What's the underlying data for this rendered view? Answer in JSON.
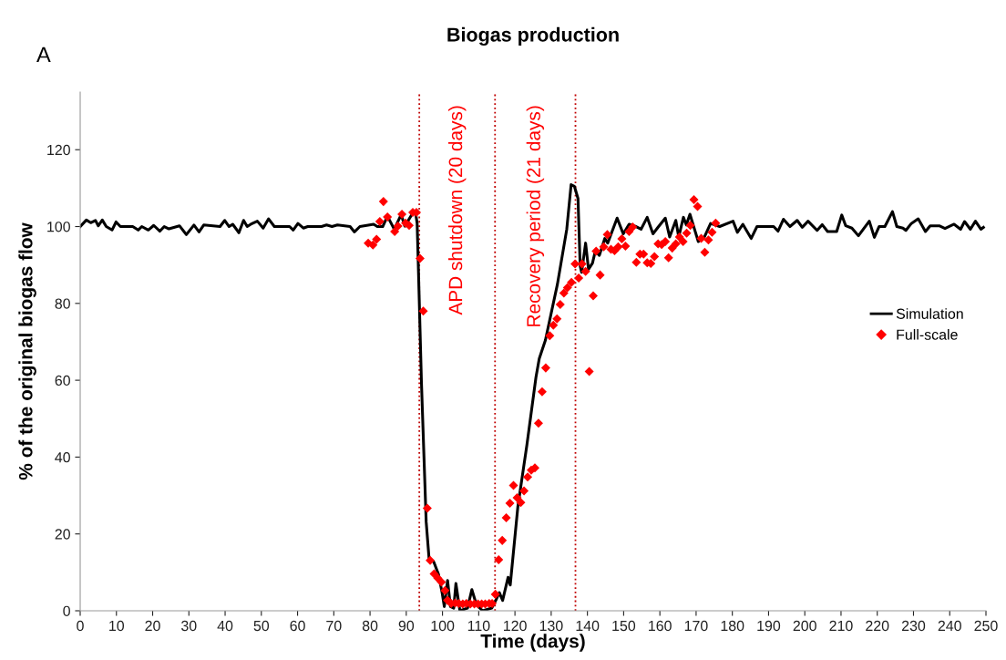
{
  "chart_data": {
    "type": "line",
    "title": "Biogas production",
    "xlabel": "Time (days)",
    "ylabel": "% of the original biogas flow",
    "annotations": [
      "A"
    ],
    "xlim": [
      0,
      250
    ],
    "xticks": [
      0,
      10,
      20,
      30,
      40,
      50,
      60,
      70,
      80,
      90,
      100,
      110,
      120,
      130,
      140,
      150,
      160,
      170,
      180,
      190,
      200,
      210,
      220,
      230,
      240,
      250
    ],
    "ylim": [
      0,
      135
    ],
    "yticks": [
      0,
      20,
      40,
      60,
      80,
      100,
      120
    ],
    "grid": false,
    "legend": "right",
    "ref_lines": [
      {
        "axis": "x",
        "value": 93.6,
        "label": "APD shutdown (20 days)",
        "color": "#c00000",
        "line_style": "dotted"
      },
      {
        "axis": "x",
        "value": 114.5,
        "label": "Recovery period (21 days)",
        "color": "#c00000",
        "line_style": "dotted"
      },
      {
        "axis": "x",
        "value": 136.7,
        "label": null,
        "color": "#c00000",
        "line_style": "dotted"
      }
    ],
    "series": [
      {
        "name": "Simulation",
        "color": "#000000",
        "marker": "none",
        "line_style": "solid",
        "x": [
          0,
          1.7,
          2.9,
          4.2,
          5,
          6.1,
          7.2,
          8.8,
          9.9,
          11.1,
          14.5,
          16,
          17,
          18.8,
          20.3,
          22,
          23.2,
          24.5,
          27.4,
          29.3,
          31.4,
          32.8,
          34.1,
          38.6,
          39.9,
          41.1,
          42.1,
          43.8,
          45.1,
          46.1,
          47.1,
          48.9,
          50.5,
          52,
          53.6,
          57.8,
          58.8,
          60.1,
          61.6,
          62.8,
          66.6,
          68,
          69.5,
          71,
          74.5,
          75.7,
          77.2,
          81,
          82,
          83.5,
          84.8,
          86.7,
          88.6,
          89.6,
          91.9,
          92.6,
          93.0,
          93.4,
          94.2,
          95.5,
          96.3,
          97.6,
          98.9,
          99.9,
          100.5,
          101.4,
          102.2,
          103.1,
          103.7,
          104.8,
          106.9,
          108.1,
          109.4,
          111.1,
          113.6,
          114.9,
          115.7,
          116.6,
          118.1,
          118.7,
          120.8,
          123.3,
          125.8,
          126.7,
          128.4,
          131.7,
          134.3,
          135.5,
          136.4,
          137.4,
          138.0,
          138.4,
          139.5,
          140.3,
          141.4,
          142.2,
          143.3,
          144.8,
          145.6,
          148.2,
          149.9,
          151.5,
          153.2,
          154.8,
          156.5,
          158.1,
          159.4,
          161.5,
          162.7,
          164.4,
          165.2,
          166.5,
          167.3,
          168.3,
          170.6,
          172.3,
          174,
          176.5,
          180.2,
          181.4,
          182.9,
          185.2,
          186.8,
          191.4,
          192.6,
          194.1,
          195.9,
          197.9,
          199.3,
          200.9,
          203.4,
          204.8,
          206.3,
          208.8,
          210.2,
          211.3,
          213,
          214.8,
          217.8,
          219.2,
          220.5,
          222.1,
          224.2,
          225.4,
          227.1,
          227.9,
          229.4,
          231.3,
          233.3,
          234.6,
          237.1,
          238.7,
          241.2,
          243,
          244.1,
          245.7,
          247.1,
          248.6,
          249.3
        ],
        "values": [
          100,
          101.7,
          101,
          101.6,
          100.2,
          101.7,
          100,
          99.1,
          101.2,
          100,
          100,
          99.1,
          100,
          99.1,
          100.3,
          98.8,
          100,
          99.4,
          100.2,
          97.9,
          100.4,
          98.6,
          100.4,
          100,
          101.6,
          100,
          100.6,
          98.4,
          101.6,
          100,
          100.6,
          101.4,
          99.6,
          102,
          100,
          100,
          99.1,
          100.8,
          99.6,
          100,
          100,
          100.4,
          100,
          100.4,
          100,
          98.6,
          100,
          100.6,
          100,
          100,
          102.7,
          99.3,
          103.1,
          100.1,
          103.7,
          103.3,
          100.9,
          87.3,
          59.2,
          23.1,
          13.5,
          12.7,
          9.5,
          4.7,
          1.1,
          7.9,
          1.1,
          0.7,
          7.1,
          0,
          0.7,
          5.5,
          1.5,
          0,
          0.7,
          3.1,
          4.7,
          2.7,
          8.7,
          6.7,
          27.1,
          43.2,
          60.8,
          65.6,
          70.4,
          84.9,
          99.3,
          110.9,
          110.5,
          107.3,
          89.7,
          88.1,
          95.7,
          88.9,
          90.5,
          93.7,
          92.5,
          96.9,
          95.7,
          102.2,
          98.1,
          100.6,
          100.1,
          99.3,
          102.4,
          98.1,
          99.7,
          102.2,
          97.3,
          101.6,
          97.3,
          102.4,
          100.4,
          103.2,
          96.1,
          97.3,
          100.8,
          100,
          101.4,
          98.5,
          100.6,
          96.9,
          100,
          100,
          98.8,
          101.9,
          100,
          101.6,
          99.8,
          101.4,
          99,
          100.5,
          98.7,
          98.7,
          103,
          100.2,
          99.6,
          97.6,
          101.4,
          97.2,
          100,
          100,
          103.9,
          100,
          99.6,
          99,
          100.8,
          102,
          98.7,
          100.2,
          100.2,
          99.5,
          100.6,
          99.3,
          101.3,
          99.3,
          101.4,
          99.3,
          99.8
        ]
      },
      {
        "name": "Full-scale",
        "type": "scatter",
        "color": "#ff0000",
        "marker": "diamond",
        "x": [
          79.5,
          80.8,
          81.8,
          82.7,
          83.7,
          84.8,
          86.8,
          87.7,
          88.8,
          89.8,
          90.8,
          91.8,
          92.8,
          93.8,
          94.7,
          95.8,
          96.6,
          97.7,
          98.7,
          99.7,
          100.7,
          101.4,
          102.4,
          103.5,
          104.5,
          105.6,
          106.6,
          107.7,
          108.8,
          109.8,
          110.8,
          111.8,
          112.9,
          113.7,
          114.6,
          115.5,
          116.5,
          117.6,
          118.6,
          119.6,
          120.6,
          121.6,
          122.5,
          123.5,
          124.5,
          125.5,
          126.5,
          127.5,
          128.5,
          129.6,
          130.6,
          131.6,
          132.5,
          133.5,
          134.5,
          135.6,
          136.6,
          137.6,
          138.5,
          139.5,
          140.5,
          141.6,
          142.4,
          143.5,
          144.5,
          145.5,
          146.5,
          147.5,
          148.5,
          149.5,
          150.5,
          151.5,
          152.5,
          153.5,
          154.5,
          155.5,
          156.5,
          157.5,
          158.5,
          159.5,
          160.5,
          161.5,
          162.4,
          163.4,
          164.4,
          165.4,
          166.4,
          167.4,
          168.4,
          169.4,
          170.4,
          171.4,
          172.4,
          173.4,
          174.4,
          175.4
        ],
        "values": [
          95.7,
          95.2,
          96.7,
          101.3,
          106.5,
          102.5,
          98.7,
          100.1,
          103.2,
          100.9,
          100.3,
          103.7,
          103.7,
          91.7,
          78.0,
          26.7,
          13.1,
          9.6,
          8.5,
          7.5,
          5.3,
          2.7,
          1.9,
          2.0,
          1.9,
          1.8,
          1.9,
          1.8,
          1.8,
          1.8,
          1.8,
          1.8,
          1.9,
          1.9,
          4.3,
          13.3,
          18.3,
          24.2,
          28.0,
          32.6,
          29.4,
          28.2,
          31.2,
          34.8,
          36.6,
          37.2,
          48.8,
          57.0,
          63.2,
          71.6,
          74.3,
          76.0,
          79.7,
          82.7,
          84.1,
          85.5,
          90.3,
          86.6,
          90.3,
          88.3,
          62.3,
          82.0,
          93.6,
          87.4,
          94.7,
          97.9,
          94.1,
          93.7,
          94.7,
          96.8,
          94.9,
          98.7,
          99.9,
          90.7,
          92.8,
          92.8,
          90.6,
          90.4,
          92.2,
          95.5,
          95.3,
          96.1,
          91.9,
          94.4,
          95.5,
          97.3,
          96.1,
          98.3,
          100.3,
          107.0,
          105.2,
          96.9,
          93.3,
          96.5,
          98.5,
          100.9
        ]
      }
    ]
  }
}
